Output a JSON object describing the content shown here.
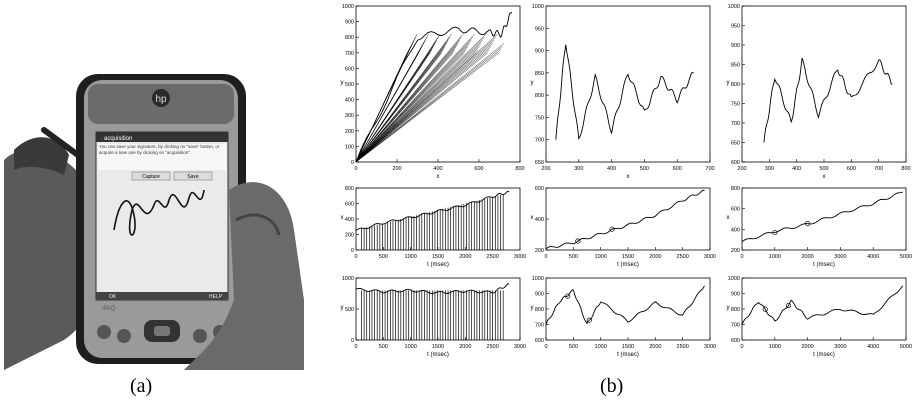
{
  "captions": {
    "a": "(a)",
    "b": "(b)"
  },
  "device": {
    "app_title": "acquisition",
    "instruction": "You can save your signature, by clicking on \"save\" button, or acquire a new one by clicking on \"acquisition\".",
    "buttons": [
      "Capture",
      "Save"
    ],
    "bottom_left": "OK",
    "bottom_right": "HELP",
    "brand": "iPAQ",
    "logo": "hp"
  },
  "plots": [
    {
      "id": "c1r1",
      "title_x": "x",
      "title_y": "y",
      "xticks": [
        "0",
        "200",
        "400",
        "600",
        "800"
      ],
      "yticks": [
        "0",
        "100",
        "200",
        "300",
        "400",
        "500",
        "600",
        "700",
        "800",
        "900",
        "1000"
      ]
    },
    {
      "id": "c1r2",
      "title_x": "t (msec)",
      "title_y": "x",
      "xticks": [
        "0",
        "500",
        "1000",
        "1500",
        "2000",
        "2500",
        "3000"
      ],
      "yticks": [
        "0",
        "200",
        "400",
        "600",
        "800"
      ]
    },
    {
      "id": "c1r3",
      "title_x": "t (msec)",
      "title_y": "y",
      "xticks": [
        "0",
        "500",
        "1000",
        "1500",
        "2000",
        "2500",
        "3000"
      ],
      "yticks": [
        "0",
        "500",
        "1000"
      ]
    },
    {
      "id": "c2r1",
      "title_x": "x",
      "title_y": "y",
      "xticks": [
        "200",
        "300",
        "400",
        "500",
        "600",
        "700"
      ],
      "yticks": [
        "650",
        "700",
        "750",
        "800",
        "850",
        "900",
        "950",
        "1000"
      ]
    },
    {
      "id": "c2r2",
      "title_x": "t (msec)",
      "title_y": "x",
      "xticks": [
        "0",
        "500",
        "1000",
        "1500",
        "2000",
        "2500",
        "3000"
      ],
      "yticks": [
        "200",
        "400",
        "600"
      ]
    },
    {
      "id": "c2r3",
      "title_x": "t (msec)",
      "title_y": "y",
      "xticks": [
        "0",
        "500",
        "1000",
        "1500",
        "2000",
        "2500",
        "3000"
      ],
      "yticks": [
        "600",
        "700",
        "800",
        "900",
        "1000"
      ]
    },
    {
      "id": "c3r1",
      "title_x": "x",
      "title_y": "y",
      "xticks": [
        "200",
        "300",
        "400",
        "500",
        "600",
        "700",
        "800"
      ],
      "yticks": [
        "600",
        "650",
        "700",
        "750",
        "800",
        "850",
        "900",
        "950",
        "1000"
      ]
    },
    {
      "id": "c3r2",
      "title_x": "t (msec)",
      "title_y": "x",
      "xticks": [
        "0",
        "1000",
        "2000",
        "3000",
        "4000",
        "5000"
      ],
      "yticks": [
        "200",
        "400",
        "600",
        "800"
      ]
    },
    {
      "id": "c3r3",
      "title_x": "t (msec)",
      "title_y": "y",
      "xticks": [
        "0",
        "1000",
        "2000",
        "3000",
        "4000",
        "5000"
      ],
      "yticks": [
        "600",
        "700",
        "800",
        "900",
        "1000"
      ]
    }
  ],
  "chart_data": [
    {
      "type": "line",
      "panel": "(b) col1 row1",
      "xlabel": "x",
      "ylabel": "y",
      "xlim": [
        0,
        800
      ],
      "ylim": [
        0,
        1000
      ],
      "series": [
        {
          "x": [
            0,
            300,
            500,
            650,
            710,
            760
          ],
          "y": [
            0,
            800,
            850,
            830,
            820,
            960
          ]
        }
      ]
    },
    {
      "type": "line",
      "panel": "(b) col1 row2",
      "xlabel": "t (msec)",
      "ylabel": "x",
      "xlim": [
        0,
        3000
      ],
      "ylim": [
        0,
        800
      ],
      "series": [
        {
          "x": [
            0,
            500,
            1000,
            1500,
            2000,
            2500,
            2800
          ],
          "y": [
            250,
            350,
            420,
            500,
            580,
            690,
            750
          ]
        }
      ]
    },
    {
      "type": "line",
      "panel": "(b) col1 row3",
      "xlabel": "t (msec)",
      "ylabel": "y",
      "xlim": [
        0,
        3000
      ],
      "ylim": [
        0,
        1000
      ],
      "series": [
        {
          "x": [
            0,
            500,
            1000,
            1500,
            2000,
            2500,
            2800
          ],
          "y": [
            820,
            780,
            800,
            760,
            790,
            770,
            900
          ]
        }
      ]
    },
    {
      "type": "line",
      "panel": "(b) col2 row1",
      "xlabel": "x",
      "ylabel": "y",
      "xlim": [
        200,
        700
      ],
      "ylim": [
        650,
        1000
      ],
      "series": [
        {
          "x": [
            230,
            260,
            300,
            350,
            400,
            450,
            500,
            550,
            600,
            650
          ],
          "y": [
            700,
            920,
            700,
            840,
            720,
            850,
            760,
            840,
            790,
            850
          ]
        }
      ]
    },
    {
      "type": "line",
      "panel": "(b) col2 row2",
      "xlabel": "t (msec)",
      "ylabel": "x",
      "xlim": [
        0,
        3000
      ],
      "ylim": [
        200,
        700
      ],
      "series": [
        {
          "x": [
            0,
            500,
            1000,
            1500,
            2000,
            2500,
            2900
          ],
          "y": [
            210,
            260,
            330,
            400,
            480,
            600,
            680
          ]
        }
      ]
    },
    {
      "type": "line",
      "panel": "(b) col2 row3",
      "xlabel": "t (msec)",
      "ylabel": "y",
      "xlim": [
        0,
        3000
      ],
      "ylim": [
        600,
        1000
      ],
      "series": [
        {
          "x": [
            0,
            250,
            500,
            750,
            1000,
            1500,
            2000,
            2500,
            2900
          ],
          "y": [
            700,
            850,
            920,
            700,
            850,
            720,
            840,
            760,
            950
          ]
        }
      ]
    },
    {
      "type": "line",
      "panel": "(b) col3 row1",
      "xlabel": "x",
      "ylabel": "y",
      "xlim": [
        200,
        800
      ],
      "ylim": [
        600,
        1000
      ],
      "series": [
        {
          "x": [
            280,
            320,
            380,
            420,
            480,
            550,
            600,
            700,
            750
          ],
          "y": [
            650,
            820,
            700,
            860,
            720,
            840,
            760,
            860,
            800
          ]
        }
      ]
    },
    {
      "type": "line",
      "panel": "(b) col3 row2",
      "xlabel": "t (msec)",
      "ylabel": "x",
      "xlim": [
        0,
        5000
      ],
      "ylim": [
        200,
        800
      ],
      "series": [
        {
          "x": [
            0,
            1000,
            2000,
            3000,
            4000,
            4900
          ],
          "y": [
            280,
            380,
            450,
            550,
            650,
            760
          ]
        }
      ]
    },
    {
      "type": "line",
      "panel": "(b) col3 row3",
      "xlabel": "t (msec)",
      "ylabel": "y",
      "xlim": [
        0,
        5000
      ],
      "ylim": [
        600,
        1000
      ],
      "series": [
        {
          "x": [
            0,
            500,
            1000,
            1500,
            2000,
            3000,
            4000,
            4900
          ],
          "y": [
            700,
            850,
            720,
            850,
            740,
            800,
            760,
            950
          ]
        }
      ]
    }
  ]
}
